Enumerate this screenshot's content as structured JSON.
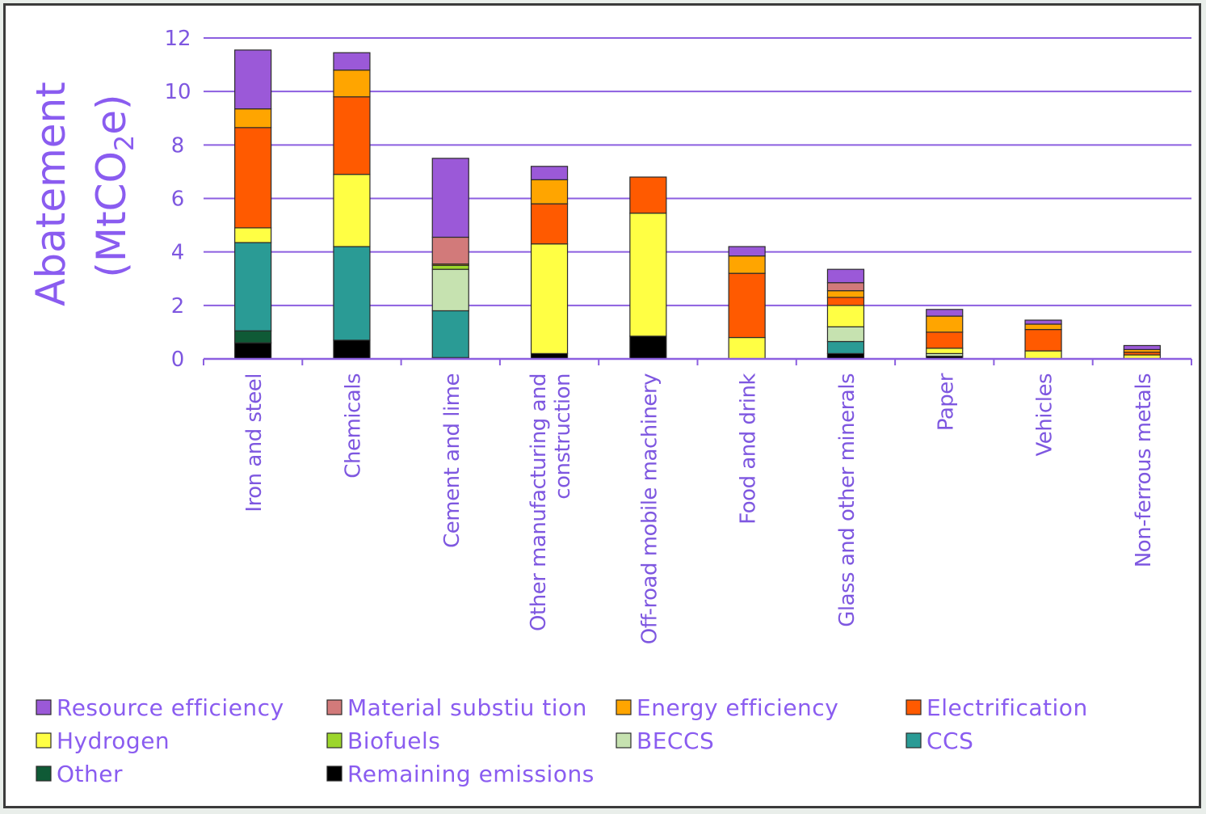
{
  "chart_data": {
    "type": "bar",
    "stacked": true,
    "title": "",
    "ylabel_main": "Abatement",
    "ylabel_unit_pre": "(MtCO",
    "ylabel_unit_sub": "2",
    "ylabel_unit_post": "e)",
    "xlabel": "",
    "ylim": [
      0,
      12
    ],
    "yticks": [
      "0",
      "2",
      "4",
      "6",
      "8",
      "10",
      "12"
    ],
    "grid": true,
    "legend_position": "bottom",
    "categories": [
      [
        "Iron and steel"
      ],
      [
        "Chemicals"
      ],
      [
        "Cement and lime"
      ],
      [
        "Other manufacturing and",
        "construction"
      ],
      [
        "Off-road mobile machinery"
      ],
      [
        "Food and drink"
      ],
      [
        "Glass and other minerals"
      ],
      [
        "Paper"
      ],
      [
        "Vehicles"
      ],
      [
        "Non-ferrous metals"
      ]
    ],
    "series": [
      {
        "name": "Remaining emissions",
        "color": "#000000",
        "values": [
          0.6,
          0.7,
          0.05,
          0.2,
          0.85,
          0,
          0.2,
          0.1,
          0,
          0
        ]
      },
      {
        "name": "Other",
        "color": "#0f5a36",
        "values": [
          0.45,
          0,
          0,
          0,
          0,
          0,
          0,
          0,
          0,
          0
        ]
      },
      {
        "name": "CCS",
        "color": "#2a9b95",
        "values": [
          3.3,
          3.5,
          1.75,
          0,
          0,
          0,
          0.45,
          0,
          0,
          0
        ]
      },
      {
        "name": "BECCS",
        "color": "#c6e2b0",
        "values": [
          0,
          0,
          1.55,
          0,
          0,
          0,
          0.55,
          0.1,
          0,
          0
        ]
      },
      {
        "name": "Biofuels",
        "color": "#9cd62b",
        "values": [
          0,
          0,
          0.15,
          0,
          0,
          0,
          0,
          0,
          0,
          0
        ]
      },
      {
        "name": "Hydrogen",
        "color": "#ffff44",
        "values": [
          0.55,
          2.7,
          0,
          4.1,
          4.6,
          0.8,
          0.8,
          0.2,
          0.3,
          0.15
        ]
      },
      {
        "name": "Electrification",
        "color": "#ff5a00",
        "values": [
          3.75,
          2.9,
          0,
          1.5,
          1.35,
          2.4,
          0.3,
          0.6,
          0.8,
          0.1
        ]
      },
      {
        "name": "Energy efficiency",
        "color": "#ffa500",
        "values": [
          0.7,
          1.0,
          0.05,
          0.9,
          0,
          0.65,
          0.25,
          0.6,
          0.2,
          0.1
        ]
      },
      {
        "name": "Material substiu tion",
        "color": "#d27a7a",
        "values": [
          0,
          0,
          1.0,
          0,
          0,
          0,
          0.3,
          0,
          0,
          0
        ]
      },
      {
        "name": "Resource efficiency",
        "color": "#9b59d8",
        "values": [
          2.2,
          0.65,
          2.95,
          0.5,
          0,
          0.35,
          0.5,
          0.25,
          0.15,
          0.15
        ]
      }
    ],
    "legend_order": [
      "Resource efficiency",
      "Material substiu tion",
      "Energy efficiency",
      "Electrification",
      "Hydrogen",
      "Biofuels",
      "BECCS",
      "CCS",
      "Other",
      "Remaining emissions"
    ]
  }
}
